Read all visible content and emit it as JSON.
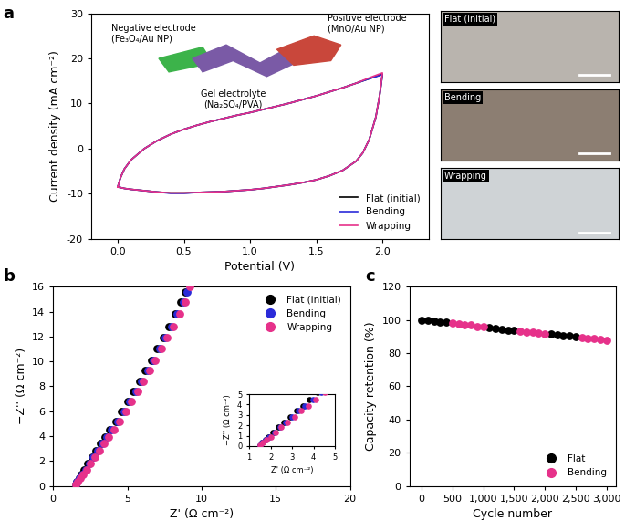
{
  "chart_data": [
    {
      "type": "line",
      "title": "a",
      "xlabel": "Potential (V)",
      "ylabel": "Current density (mA cm⁻²)",
      "xlim": [
        -0.2,
        2.35
      ],
      "ylim": [
        -20,
        30
      ],
      "xticks": [
        0.0,
        0.5,
        1.0,
        1.5,
        2.0
      ],
      "yticks": [
        -20,
        -10,
        0,
        10,
        20,
        30
      ],
      "legend": "lower right",
      "annotations": [
        "Negative electrode\n(Fe₃O₄/Au NP)",
        "Positive electrode\n(MnO/Au NP)",
        "Gel electrolyte\n(Na₂SO₄/PVA)"
      ],
      "photo_labels": [
        "Flat (initial)",
        "Bending",
        "Wrapping"
      ],
      "x": [
        0.0,
        0.02,
        0.05,
        0.1,
        0.2,
        0.3,
        0.4,
        0.5,
        0.6,
        0.7,
        0.8,
        0.9,
        1.0,
        1.1,
        1.2,
        1.3,
        1.4,
        1.5,
        1.6,
        1.7,
        1.8,
        1.9,
        2.0,
        1.98,
        1.95,
        1.9,
        1.85,
        1.8,
        1.7,
        1.6,
        1.5,
        1.4,
        1.3,
        1.2,
        1.1,
        1.0,
        0.9,
        0.8,
        0.7,
        0.6,
        0.5,
        0.4,
        0.3,
        0.2,
        0.1,
        0.05,
        0.02,
        0.0
      ],
      "series": [
        {
          "name": "Flat (initial)",
          "color": "#000000",
          "values": [
            -8.5,
            -6.5,
            -4.5,
            -2.5,
            0,
            1.8,
            3.2,
            4.3,
            5.2,
            6.0,
            6.7,
            7.4,
            8.0,
            8.7,
            9.4,
            10.1,
            10.9,
            11.7,
            12.6,
            13.5,
            14.5,
            15.5,
            16.5,
            12,
            7,
            2,
            -1,
            -2.8,
            -4.8,
            -6.0,
            -6.9,
            -7.5,
            -8.0,
            -8.4,
            -8.8,
            -9.1,
            -9.3,
            -9.5,
            -9.6,
            -9.7,
            -9.8,
            -9.8,
            -9.6,
            -9.3,
            -9.0,
            -8.8,
            -8.6,
            -8.5
          ]
        },
        {
          "name": "Bending",
          "color": "#2b2bd9",
          "values": [
            -8.5,
            -6.5,
            -4.5,
            -2.5,
            0,
            1.8,
            3.2,
            4.3,
            5.2,
            6.0,
            6.7,
            7.4,
            8.0,
            8.7,
            9.4,
            10.1,
            10.9,
            11.7,
            12.6,
            13.5,
            14.5,
            15.5,
            16.4,
            12,
            7,
            2,
            -1,
            -2.8,
            -4.8,
            -6.0,
            -6.9,
            -7.5,
            -8.0,
            -8.4,
            -8.8,
            -9.1,
            -9.3,
            -9.5,
            -9.6,
            -9.7,
            -9.9,
            -9.9,
            -9.6,
            -9.3,
            -9.0,
            -8.8,
            -8.6,
            -8.5
          ]
        },
        {
          "name": "Wrapping",
          "color": "#e6318a",
          "values": [
            -8.5,
            -6.5,
            -4.5,
            -2.5,
            0,
            1.8,
            3.2,
            4.3,
            5.2,
            6.0,
            6.7,
            7.4,
            8.0,
            8.7,
            9.4,
            10.1,
            10.9,
            11.7,
            12.6,
            13.5,
            14.5,
            15.7,
            16.8,
            12,
            7,
            2,
            -1,
            -2.8,
            -4.8,
            -6.0,
            -6.9,
            -7.5,
            -8.0,
            -8.4,
            -8.8,
            -9.1,
            -9.3,
            -9.5,
            -9.6,
            -9.7,
            -9.8,
            -9.8,
            -9.6,
            -9.3,
            -9.0,
            -8.8,
            -8.6,
            -8.5
          ]
        }
      ]
    },
    {
      "type": "scatter",
      "title": "b",
      "xlabel": "Z' (Ω cm⁻²)",
      "ylabel": "−Z'' (Ω cm⁻²)",
      "xlim": [
        0,
        20
      ],
      "ylim": [
        0,
        16
      ],
      "xticks": [
        0,
        5,
        10,
        15,
        20
      ],
      "yticks": [
        0,
        2,
        4,
        6,
        8,
        10,
        12,
        14,
        16
      ],
      "legend": "upper right",
      "inset": {
        "xlabel": "Z' (Ω cm⁻²)",
        "ylabel": "−Z'' (Ω cm⁻²)",
        "xlim": [
          1,
          5
        ],
        "ylim": [
          0,
          5
        ],
        "xticks": [
          1,
          2,
          3,
          4,
          5
        ],
        "yticks": [
          0,
          1,
          2,
          3,
          4,
          5
        ]
      },
      "series": [
        {
          "name": "Flat (initial)",
          "color": "#000000",
          "marker": "circle",
          "x": [
            1.5,
            1.6,
            1.75,
            1.9,
            2.1,
            2.35,
            2.6,
            2.9,
            3.2,
            3.5,
            3.8,
            4.2,
            4.6,
            5.0,
            5.4,
            5.8,
            6.2,
            6.6,
            7.0,
            7.4,
            7.8,
            8.2,
            8.6,
            8.9
          ],
          "values": [
            0.1,
            0.3,
            0.6,
            0.9,
            1.3,
            1.8,
            2.3,
            2.8,
            3.4,
            3.9,
            4.5,
            5.2,
            6.0,
            6.8,
            7.6,
            8.4,
            9.3,
            10.1,
            11.0,
            11.9,
            12.8,
            13.8,
            14.8,
            15.6
          ]
        },
        {
          "name": "Bending",
          "color": "#2b2bd9",
          "marker": "circle",
          "x": [
            1.5,
            1.6,
            1.75,
            1.95,
            2.2,
            2.45,
            2.7,
            3.0,
            3.3,
            3.6,
            3.95,
            4.35,
            4.75,
            5.15,
            5.55,
            5.95,
            6.35,
            6.75,
            7.15,
            7.55,
            7.95,
            8.35,
            8.75,
            9.05
          ],
          "values": [
            0.1,
            0.3,
            0.6,
            0.9,
            1.3,
            1.8,
            2.3,
            2.8,
            3.4,
            3.9,
            4.5,
            5.2,
            6.0,
            6.8,
            7.6,
            8.4,
            9.3,
            10.1,
            11.0,
            11.9,
            12.8,
            13.8,
            14.8,
            15.6
          ]
        },
        {
          "name": "Wrapping",
          "color": "#e6318a",
          "marker": "circle",
          "x": [
            1.5,
            1.62,
            1.8,
            2.0,
            2.25,
            2.5,
            2.8,
            3.1,
            3.4,
            3.75,
            4.1,
            4.5,
            4.9,
            5.3,
            5.7,
            6.1,
            6.5,
            6.9,
            7.3,
            7.7,
            8.1,
            8.5,
            8.9,
            9.2
          ],
          "values": [
            0.1,
            0.3,
            0.6,
            0.9,
            1.3,
            1.8,
            2.3,
            2.8,
            3.4,
            3.9,
            4.5,
            5.2,
            6.0,
            6.8,
            7.6,
            8.4,
            9.3,
            10.1,
            11.0,
            11.9,
            12.8,
            13.8,
            14.8,
            16.0
          ]
        }
      ]
    },
    {
      "type": "scatter",
      "title": "c",
      "xlabel": "Cycle number",
      "ylabel": "Capacity retention (%)",
      "xlim": [
        -200,
        3150
      ],
      "ylim": [
        0,
        120
      ],
      "xticks": [
        0,
        500,
        {
          "value": 1000,
          "label": "1,000"
        },
        {
          "value": 1500,
          "label": "1,500"
        },
        {
          "value": 2000,
          "label": "2,000"
        },
        {
          "value": 2500,
          "label": "2,500"
        },
        {
          "value": 3000,
          "label": "3,000"
        }
      ],
      "yticks": [
        0,
        20,
        40,
        60,
        80,
        100,
        120
      ],
      "legend": "lower right",
      "series": [
        {
          "name": "Flat",
          "color": "#000000",
          "marker": "circle",
          "x": [
            0,
            100,
            200,
            300,
            400,
            1100,
            1200,
            1300,
            1400,
            1500,
            2100,
            2200,
            2300,
            2400,
            2500
          ],
          "values": [
            100,
            99.8,
            99.3,
            98.9,
            98.5,
            95.3,
            94.9,
            94.5,
            94.0,
            93.6,
            91.3,
            91.0,
            90.6,
            90.2,
            89.8
          ]
        },
        {
          "name": "Bending",
          "color": "#e6318a",
          "marker": "circle",
          "x": [
            500,
            600,
            700,
            800,
            900,
            1000,
            1600,
            1700,
            1800,
            1900,
            2000,
            2600,
            2700,
            2800,
            2900,
            3000
          ],
          "values": [
            98.0,
            97.5,
            97.2,
            96.8,
            96.2,
            95.8,
            93.2,
            92.8,
            92.4,
            92.0,
            91.6,
            89.4,
            89.0,
            88.6,
            88.2,
            87.9
          ]
        }
      ]
    }
  ]
}
